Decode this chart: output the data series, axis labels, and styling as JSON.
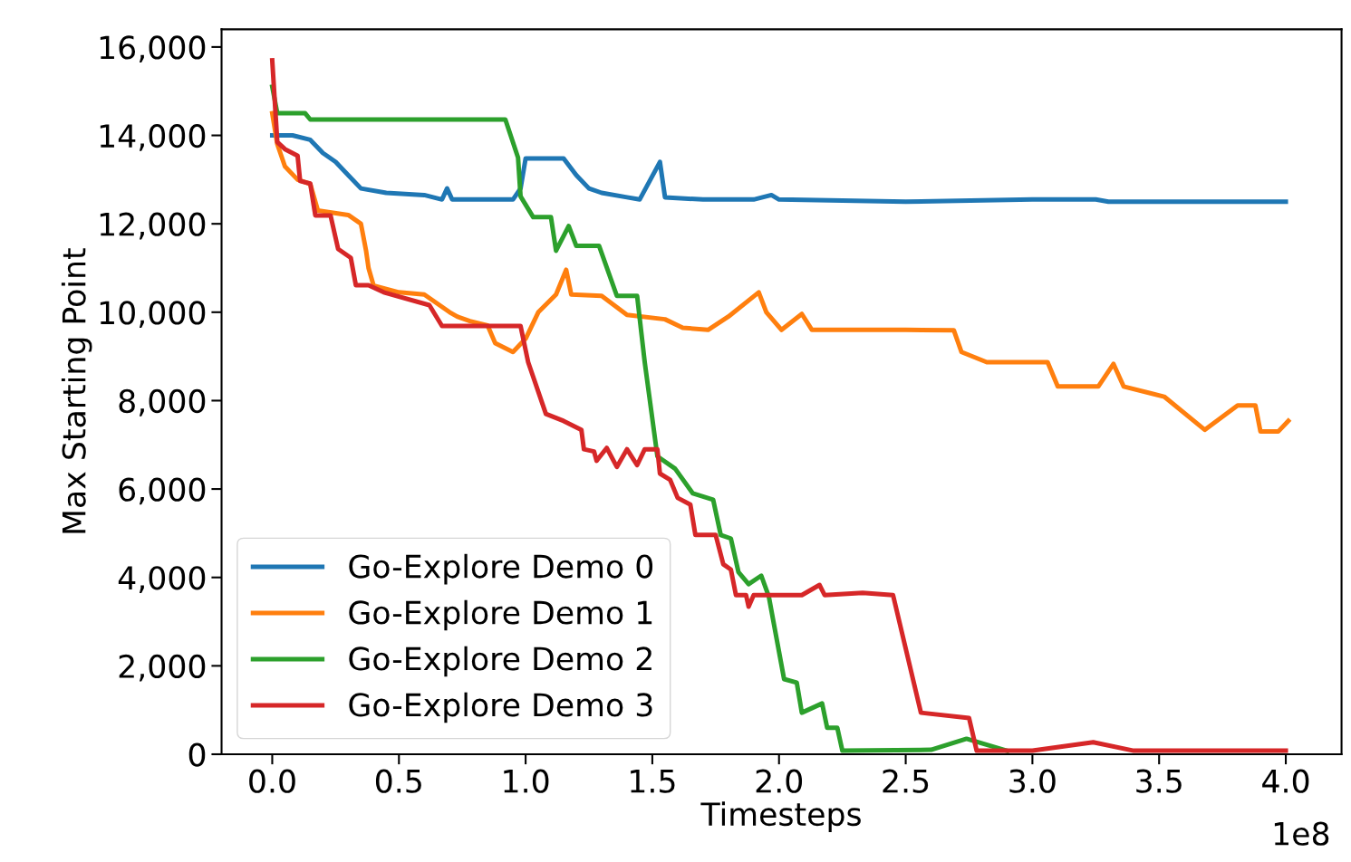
{
  "chart_data": {
    "type": "line",
    "xlabel": "Timesteps",
    "ylabel": "Max Starting Point",
    "annotations": [
      "1e8"
    ],
    "xlim": [
      -0.2,
      4.22
    ],
    "ylim": [
      0,
      16400
    ],
    "xticks": [
      {
        "value": 0,
        "label": "0.0"
      },
      {
        "value": 0.5,
        "label": "0.5"
      },
      {
        "value": 1,
        "label": "1.0"
      },
      {
        "value": 1.5,
        "label": "1.5"
      },
      {
        "value": 2,
        "label": "2.0"
      },
      {
        "value": 2.5,
        "label": "2.5"
      },
      {
        "value": 3,
        "label": "3.0"
      },
      {
        "value": 3.5,
        "label": "3.5"
      },
      {
        "value": 4,
        "label": "4.0"
      }
    ],
    "yticks": [
      {
        "value": 0,
        "label": "0"
      },
      {
        "value": 2000,
        "label": "2,000"
      },
      {
        "value": 4000,
        "label": "4,000"
      },
      {
        "value": 6000,
        "label": "6,000"
      },
      {
        "value": 8000,
        "label": "8,000"
      },
      {
        "value": 10000,
        "label": "10,000"
      },
      {
        "value": 12000,
        "label": "12,000"
      },
      {
        "value": 14000,
        "label": "14,000"
      },
      {
        "value": 16000,
        "label": "16,000"
      }
    ],
    "grid": false,
    "legend": "bottom left",
    "marker": "none",
    "line_style": "solid",
    "series": [
      {
        "name": "Go-Explore Demo 0",
        "color": "#1f77b4",
        "x": [
          0.0,
          0.08,
          0.15,
          0.2,
          0.25,
          0.3,
          0.35,
          0.45,
          0.6,
          0.67,
          0.69,
          0.71,
          0.8,
          0.95,
          0.98,
          1.0,
          1.15,
          1.2,
          1.25,
          1.3,
          1.4,
          1.45,
          1.53,
          1.55,
          1.7,
          1.9,
          1.97,
          2.0,
          2.5,
          3.0,
          3.25,
          3.3,
          4.0
        ],
        "values": [
          14000,
          14000,
          13900,
          13600,
          13400,
          13100,
          12800,
          12700,
          12650,
          12550,
          12800,
          12550,
          12550,
          12550,
          12800,
          13480,
          13480,
          13100,
          12800,
          12700,
          12600,
          12550,
          13400,
          12600,
          12550,
          12550,
          12650,
          12550,
          12500,
          12550,
          12550,
          12500,
          12500
        ]
      },
      {
        "name": "Go-Explore Demo 1",
        "color": "#ff7f0e",
        "x": [
          0.0,
          0.02,
          0.05,
          0.1,
          0.15,
          0.18,
          0.3,
          0.35,
          0.37,
          0.38,
          0.4,
          0.5,
          0.6,
          0.7,
          0.73,
          0.78,
          0.85,
          0.88,
          0.95,
          1.0,
          1.05,
          1.12,
          1.16,
          1.18,
          1.3,
          1.4,
          1.55,
          1.62,
          1.72,
          1.8,
          1.92,
          1.95,
          2.01,
          2.09,
          2.13,
          2.5,
          2.69,
          2.72,
          2.82,
          3.06,
          3.1,
          3.26,
          3.32,
          3.36,
          3.52,
          3.68,
          3.81,
          3.88,
          3.9,
          3.97,
          4.01
        ],
        "values": [
          14500,
          13800,
          13300,
          13000,
          12900,
          12300,
          12200,
          12000,
          11400,
          11000,
          10600,
          10450,
          10400,
          10000,
          9900,
          9800,
          9700,
          9300,
          9100,
          9400,
          10000,
          10400,
          10960,
          10400,
          10370,
          9940,
          9840,
          9650,
          9600,
          9900,
          10450,
          10000,
          9600,
          9960,
          9600,
          9600,
          9590,
          9100,
          8870,
          8870,
          8320,
          8320,
          8830,
          8320,
          8090,
          7340,
          7890,
          7890,
          7300,
          7300,
          7540
        ]
      },
      {
        "name": "Go-Explore Demo 2",
        "color": "#2ca02c",
        "x": [
          0.0,
          0.02,
          0.13,
          0.15,
          0.92,
          0.97,
          0.98,
          1.03,
          1.1,
          1.12,
          1.17,
          1.2,
          1.29,
          1.36,
          1.44,
          1.47,
          1.52,
          1.59,
          1.66,
          1.74,
          1.77,
          1.81,
          1.84,
          1.88,
          1.93,
          1.96,
          2.02,
          2.07,
          2.09,
          2.17,
          2.19,
          2.23,
          2.25,
          2.6,
          2.74,
          2.9
        ],
        "values": [
          15100,
          14500,
          14500,
          14360,
          14360,
          13500,
          12620,
          12150,
          12150,
          11390,
          11950,
          11500,
          11500,
          10370,
          10370,
          8870,
          6740,
          6460,
          5900,
          5760,
          4960,
          4880,
          4120,
          3850,
          4040,
          3560,
          1700,
          1620,
          940,
          1150,
          600,
          600,
          80,
          100,
          350,
          80
        ]
      },
      {
        "name": "Go-Explore Demo 3",
        "color": "#d62728",
        "x": [
          0.0,
          0.02,
          0.05,
          0.1,
          0.11,
          0.15,
          0.17,
          0.23,
          0.26,
          0.31,
          0.33,
          0.38,
          0.44,
          0.62,
          0.67,
          0.98,
          1.01,
          1.08,
          1.15,
          1.22,
          1.23,
          1.27,
          1.28,
          1.32,
          1.36,
          1.4,
          1.44,
          1.47,
          1.52,
          1.53,
          1.57,
          1.6,
          1.65,
          1.67,
          1.75,
          1.78,
          1.81,
          1.83,
          1.87,
          1.88,
          1.9,
          2.09,
          2.16,
          2.18,
          2.33,
          2.45,
          2.56,
          2.75,
          2.78,
          3.0,
          3.24,
          3.4,
          4.0
        ],
        "values": [
          15700,
          13850,
          13690,
          13540,
          12970,
          12910,
          12190,
          12190,
          11430,
          11230,
          10610,
          10610,
          10450,
          10160,
          9690,
          9690,
          8870,
          7700,
          7540,
          7340,
          6900,
          6850,
          6640,
          6930,
          6500,
          6900,
          6540,
          6900,
          6900,
          6350,
          6210,
          5800,
          5650,
          4960,
          4960,
          4300,
          4180,
          3600,
          3600,
          3340,
          3600,
          3600,
          3830,
          3600,
          3650,
          3600,
          940,
          820,
          80,
          80,
          270,
          80,
          80
        ]
      }
    ]
  }
}
